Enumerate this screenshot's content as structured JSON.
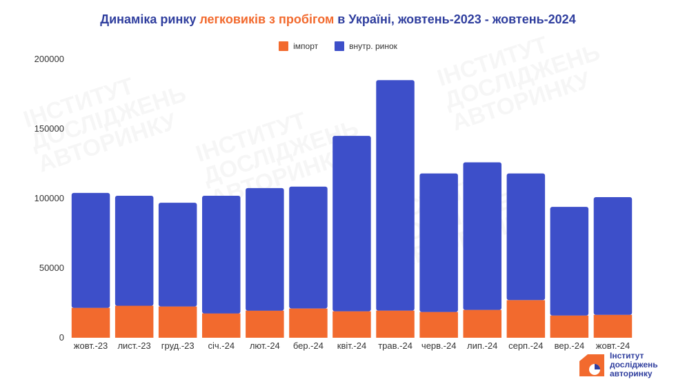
{
  "title": {
    "part1": "Динаміка ринку ",
    "part2": "легковиків з пробігом",
    "part3": " в Україні, жовтень-2023 - жовтень-2024"
  },
  "colors": {
    "import": "#f26a2e",
    "domestic": "#3d4fc9",
    "title": "#2f3e9e",
    "accent": "#f26a2e"
  },
  "logo": {
    "line1": "Інститут",
    "line2": "досліджень",
    "line3": "авторинку",
    "watermark_line1": "ІНСТИТУТ",
    "watermark_line2": "ДОСЛІДЖЕНЬ",
    "watermark_line3": "АВТОРИНКУ"
  },
  "chart_data": {
    "type": "bar",
    "stacked": true,
    "categories": [
      "жовт.-23",
      "лист.-23",
      "груд.-23",
      "січ.-24",
      "лют.-24",
      "бер.-24",
      "квіт.-24",
      "трав.-24",
      "черв.-24",
      "лип.-24",
      "серп.-24",
      "вер.-24",
      "жовт.-24"
    ],
    "series": [
      {
        "name": "імпорт",
        "values": [
          21500,
          23000,
          22500,
          17500,
          19500,
          21000,
          19000,
          19500,
          18500,
          20000,
          27000,
          16000,
          16500
        ]
      },
      {
        "name": "внутр. ринок",
        "values": [
          82500,
          79000,
          74500,
          84500,
          88000,
          87500,
          126000,
          165500,
          99500,
          106000,
          91000,
          78000,
          84500
        ]
      }
    ],
    "ylim": [
      0,
      200000
    ],
    "yticks": [
      0,
      50000,
      100000,
      150000,
      200000
    ],
    "legend_position": "top",
    "grid": false,
    "xlabel": "",
    "ylabel": ""
  }
}
